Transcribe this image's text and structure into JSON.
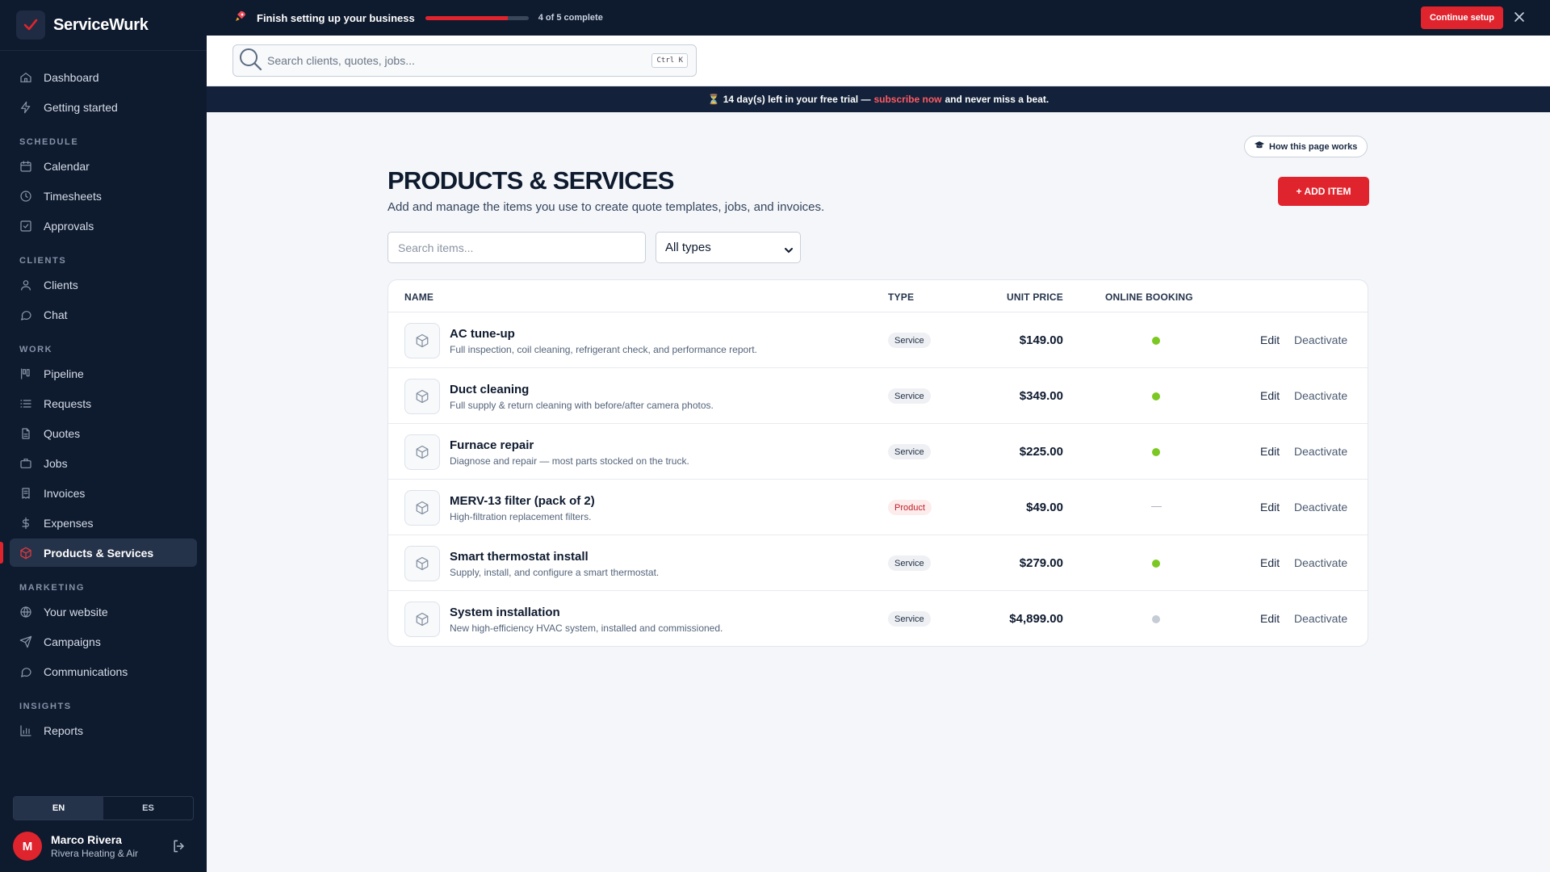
{
  "brand": {
    "name": "ServiceWurk"
  },
  "setup": {
    "title": "Finish setting up your business",
    "progress": 0.8,
    "count": "4 of 5 complete",
    "cta": "Continue setup"
  },
  "search": {
    "placeholder": "Search clients, quotes, jobs...",
    "shortcut": "Ctrl K"
  },
  "trial": {
    "days": "14",
    "text1": "day(s) left in your free trial —",
    "link": "subscribe now",
    "text2": "and never miss a beat."
  },
  "sidebar": {
    "top": [
      {
        "label": "Dashboard",
        "icon": "home-icon"
      },
      {
        "label": "Getting started",
        "icon": "bolt-icon"
      }
    ],
    "sections": [
      {
        "label": "SCHEDULE",
        "items": [
          {
            "label": "Calendar",
            "icon": "calendar-icon"
          },
          {
            "label": "Timesheets",
            "icon": "clock-icon"
          },
          {
            "label": "Approvals",
            "icon": "checkbox-icon"
          }
        ]
      },
      {
        "label": "CLIENTS",
        "items": [
          {
            "label": "Clients",
            "icon": "user-icon"
          },
          {
            "label": "Chat",
            "icon": "chat-icon"
          }
        ]
      },
      {
        "label": "WORK",
        "items": [
          {
            "label": "Pipeline",
            "icon": "pipeline-icon"
          },
          {
            "label": "Requests",
            "icon": "list-icon"
          },
          {
            "label": "Quotes",
            "icon": "document-icon"
          },
          {
            "label": "Jobs",
            "icon": "briefcase-icon"
          },
          {
            "label": "Invoices",
            "icon": "invoice-icon"
          },
          {
            "label": "Expenses",
            "icon": "dollar-icon"
          },
          {
            "label": "Products & Services",
            "icon": "box-icon",
            "active": true
          }
        ]
      },
      {
        "label": "MARKETING",
        "items": [
          {
            "label": "Your website",
            "icon": "globe-icon"
          },
          {
            "label": "Campaigns",
            "icon": "send-icon"
          },
          {
            "label": "Communications",
            "icon": "message-icon"
          }
        ]
      },
      {
        "label": "INSIGHTS",
        "items": [
          {
            "label": "Reports",
            "icon": "bar-chart-icon"
          }
        ]
      }
    ],
    "lang": {
      "en": "EN",
      "es": "ES",
      "selected": "EN"
    },
    "user": {
      "initial": "M",
      "name": "Marco Rivera",
      "company": "Rivera Heating & Air"
    }
  },
  "page": {
    "how": "How this page works",
    "title": "PRODUCTS & SERVICES",
    "subtitle": "Add and manage the items you use to create quote templates, jobs, and invoices.",
    "add": "+ ADD ITEM",
    "search_placeholder": "Search items...",
    "type_filter": "All types"
  },
  "table": {
    "headers": {
      "name": "NAME",
      "type": "TYPE",
      "price": "UNIT PRICE",
      "booking": "ONLINE BOOKING"
    },
    "edit_label": "Edit",
    "deactivate_label": "Deactivate",
    "rows": [
      {
        "name": "AC tune-up",
        "desc": "Full inspection, coil cleaning, refrigerant check, and performance report.",
        "type": "Service",
        "price": "$149.00",
        "booking": "on"
      },
      {
        "name": "Duct cleaning",
        "desc": "Full supply & return cleaning with before/after camera photos.",
        "type": "Service",
        "price": "$349.00",
        "booking": "on"
      },
      {
        "name": "Furnace repair",
        "desc": "Diagnose and repair — most parts stocked on the truck.",
        "type": "Service",
        "price": "$225.00",
        "booking": "on"
      },
      {
        "name": "MERV-13 filter (pack of 2)",
        "desc": "High-filtration replacement filters.",
        "type": "Product",
        "price": "$49.00",
        "booking": "na"
      },
      {
        "name": "Smart thermostat install",
        "desc": "Supply, install, and configure a smart thermostat.",
        "type": "Service",
        "price": "$279.00",
        "booking": "on"
      },
      {
        "name": "System installation",
        "desc": "New high-efficiency HVAC system, installed and commissioned.",
        "type": "Service",
        "price": "$4,899.00",
        "booking": "off"
      }
    ]
  },
  "colors": {
    "accent": "#e0242e",
    "navy": "#0e1a2e",
    "booking_on": "#7cc822",
    "booking_off": "#c5ccd6"
  }
}
